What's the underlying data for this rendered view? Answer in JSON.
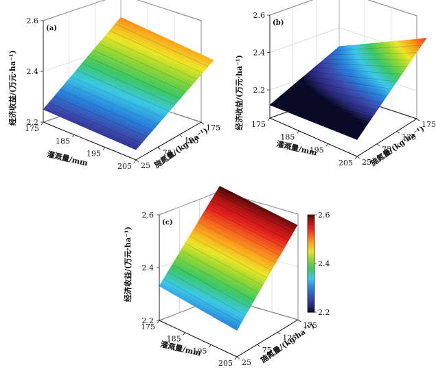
{
  "chart_data": [
    {
      "type": "surface",
      "panel_label": "(a)",
      "zlabel": "经济收益/(万元·ha⁻¹)",
      "xlabel": "灌溉量/mm",
      "ylabel": "施氮量/(kg·ha⁻¹)",
      "z_ticks": [
        "2.2",
        "2.4",
        "2.6"
      ],
      "x_ticks": [
        "175",
        "185",
        "195",
        "205"
      ],
      "y_ticks": [
        "25",
        "75",
        "125",
        "175"
      ],
      "zlim": [
        2.2,
        2.6
      ],
      "x": [
        175,
        205
      ],
      "y": [
        25,
        175
      ],
      "z_grid": [
        [
          2.25,
          2.51
        ],
        [
          2.24,
          2.49
        ]
      ]
    },
    {
      "type": "surface",
      "panel_label": "(b)",
      "zlabel": "经济收益/(万元·ha⁻¹)",
      "xlabel": "灌溉量/mm",
      "ylabel": "施氮量/(kg·ha⁻¹)",
      "z_ticks": [
        "2.2",
        "2.4",
        "2.6"
      ],
      "x_ticks": [
        "175",
        "185",
        "195",
        "205"
      ],
      "y_ticks": [
        "25",
        "75",
        "125",
        "175"
      ],
      "zlim": [
        2.05,
        2.6
      ],
      "x": [
        175,
        205
      ],
      "y": [
        25,
        175
      ],
      "z_grid": [
        [
          2.12,
          2.3
        ],
        [
          2.14,
          2.55
        ]
      ]
    },
    {
      "type": "surface",
      "panel_label": "(c)",
      "zlabel": "经济收益/(万元·ha⁻¹)",
      "xlabel": "灌溉量/mm",
      "ylabel": "施氮量/(kg·ha⁻¹)",
      "z_ticks": [
        "2.2",
        "2.4",
        "2.6"
      ],
      "x_ticks": [
        "175",
        "185",
        "195",
        "205"
      ],
      "y_ticks": [
        "25",
        "75",
        "125",
        "175"
      ],
      "zlim": [
        2.2,
        2.6
      ],
      "x": [
        175,
        205
      ],
      "y": [
        25,
        175
      ],
      "z_grid": [
        [
          2.33,
          2.62
        ],
        [
          2.3,
          2.61
        ]
      ],
      "colorbar": {
        "ticks": [
          "2.2",
          "2.4",
          "2.6"
        ],
        "range": [
          2.2,
          2.6
        ]
      }
    }
  ]
}
